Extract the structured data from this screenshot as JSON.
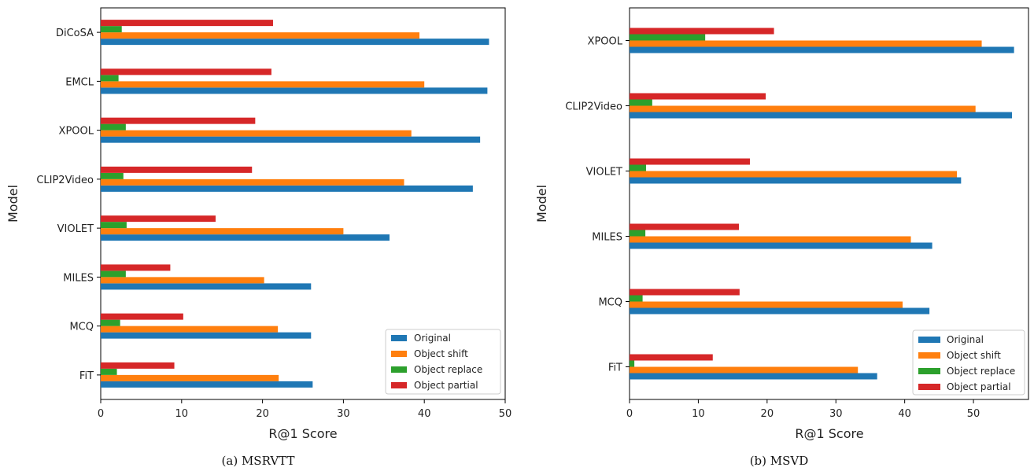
{
  "chart_data": [
    {
      "type": "bar",
      "orientation": "horizontal",
      "caption": "(a) MSRVTT",
      "xlabel": "R@1 Score",
      "ylabel": "Model",
      "xlim": [
        0,
        50
      ],
      "xticks": [
        0,
        10,
        20,
        30,
        40,
        50
      ],
      "grid": false,
      "legend_position": "lower-right",
      "categories": [
        "FiT",
        "MCQ",
        "MILES",
        "VIOLET",
        "CLIP2Video",
        "XPOOL",
        "EMCL",
        "DiCoSA"
      ],
      "series": [
        {
          "name": "Original",
          "color": "#1f77b4",
          "values": [
            26.2,
            26.0,
            26.0,
            35.7,
            46.0,
            46.9,
            47.8,
            48.0
          ]
        },
        {
          "name": "Object shift",
          "color": "#ff7f0e",
          "values": [
            22.0,
            21.9,
            20.2,
            30.0,
            37.5,
            38.4,
            40.0,
            39.4
          ]
        },
        {
          "name": "Object replace",
          "color": "#2ca02c",
          "values": [
            2.0,
            2.4,
            3.1,
            3.2,
            2.8,
            3.1,
            2.2,
            2.6
          ]
        },
        {
          "name": "Object partial",
          "color": "#d62728",
          "values": [
            9.1,
            10.2,
            8.6,
            14.2,
            18.7,
            19.1,
            21.1,
            21.3
          ]
        }
      ]
    },
    {
      "type": "bar",
      "orientation": "horizontal",
      "caption": "(b) MSVD",
      "xlabel": "R@1 Score",
      "ylabel": "Model",
      "xlim": [
        0,
        58
      ],
      "xticks": [
        0,
        10,
        20,
        30,
        40,
        50
      ],
      "grid": false,
      "legend_position": "lower-right",
      "categories": [
        "FiT",
        "MCQ",
        "MILES",
        "VIOLET",
        "CLIP2Video",
        "XPOOL"
      ],
      "series": [
        {
          "name": "Original",
          "color": "#1f77b4",
          "values": [
            36.0,
            43.6,
            44.0,
            48.2,
            55.6,
            55.9
          ]
        },
        {
          "name": "Object shift",
          "color": "#ff7f0e",
          "values": [
            33.2,
            39.7,
            40.9,
            47.6,
            50.3,
            51.2
          ]
        },
        {
          "name": "Object replace",
          "color": "#2ca02c",
          "values": [
            0.7,
            1.9,
            2.3,
            2.4,
            3.3,
            11.0
          ]
        },
        {
          "name": "Object partial",
          "color": "#d62728",
          "values": [
            12.1,
            16.0,
            15.9,
            17.5,
            19.8,
            21.0
          ]
        }
      ]
    }
  ]
}
